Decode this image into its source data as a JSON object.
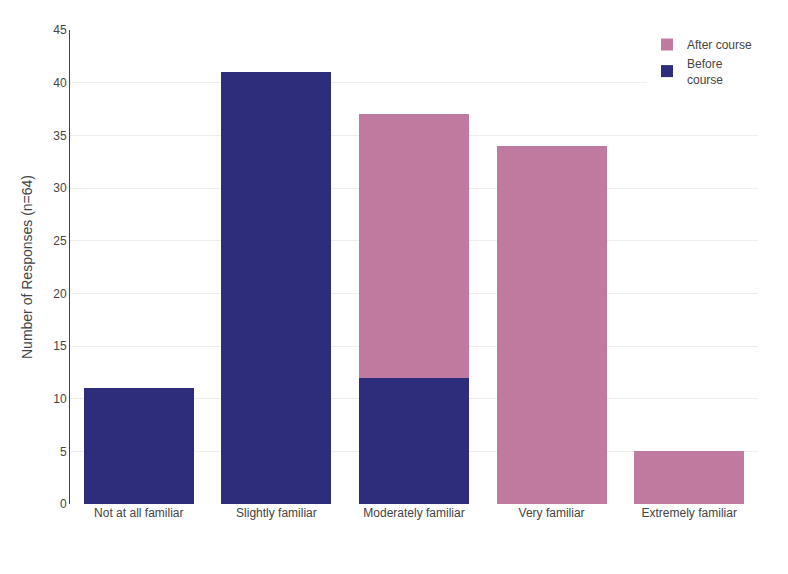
{
  "chart_data": {
    "type": "bar",
    "stacked": true,
    "categories": [
      "Not at all familiar",
      "Slightly familiar",
      "Moderately familiar",
      "Very familiar",
      "Extremely familiar"
    ],
    "series": [
      {
        "name": "Before\ncourse",
        "color": "#2e2d7b",
        "values": [
          11,
          41,
          12,
          0,
          0
        ]
      },
      {
        "name": "After course",
        "color": "#c07aa0",
        "values": [
          0,
          0,
          25,
          34,
          5
        ]
      }
    ],
    "ylabel": "Number of Responses (n=64)",
    "ylim": [
      0,
      45
    ],
    "yticks": [
      0,
      5,
      10,
      15,
      20,
      25,
      30,
      35,
      40,
      45
    ],
    "grid": true,
    "legend": "upper right"
  }
}
